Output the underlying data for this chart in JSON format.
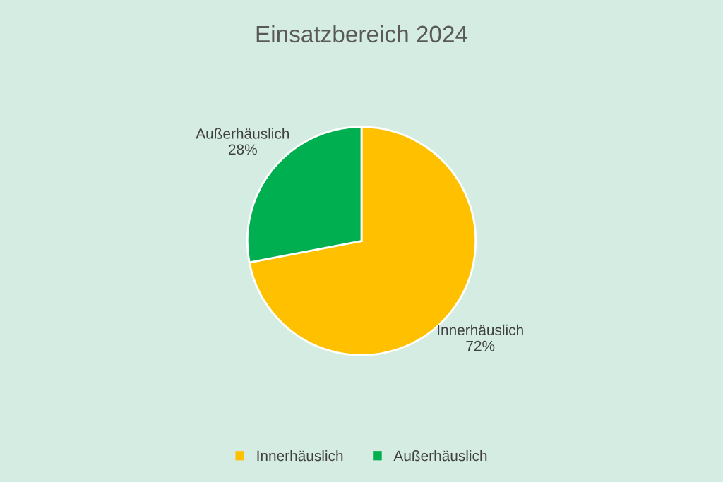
{
  "chart_data": {
    "type": "pie",
    "title": "Einsatzbereich 2024",
    "categories": [
      "Innerhäuslich",
      "Außerhäuslich"
    ],
    "values": [
      72,
      28
    ],
    "value_labels": [
      "72%",
      "28%"
    ],
    "colors": [
      "#ffc000",
      "#00b050"
    ],
    "legend": "bottom"
  }
}
